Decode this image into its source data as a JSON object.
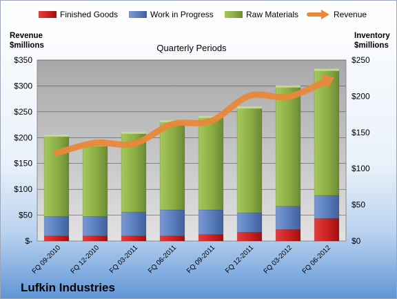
{
  "company": "Lufkin Industries",
  "chart_data": {
    "type": "bar",
    "stacked": true,
    "subtitle": "Quarterly Periods",
    "categories": [
      "FQ 09-2010",
      "FQ 12-2010",
      "FQ 03-2011",
      "FQ 06-2011",
      "FQ 09-2011",
      "FQ 12-2011",
      "FQ 03-2012",
      "FQ 06-2012"
    ],
    "left_axis": {
      "title_line1": "Revenue",
      "title_line2": "$millions",
      "range": [
        0,
        350
      ],
      "ticks": [
        "$-",
        "$50",
        "$100",
        "$150",
        "$200",
        "$250",
        "$300",
        "$350"
      ]
    },
    "right_axis": {
      "title_line1": "Inventory",
      "title_line2": "$millions",
      "range": [
        0,
        250
      ],
      "ticks": [
        "$0",
        "$50",
        "$100",
        "$150",
        "$200",
        "$250"
      ]
    },
    "series": [
      {
        "name": "Finished Goods",
        "axis": "right",
        "kind": "bar",
        "color": "#cc2222",
        "values": [
          7,
          7,
          7,
          7,
          9,
          12,
          16,
          31
        ]
      },
      {
        "name": "Work in Progress",
        "axis": "right",
        "kind": "bar",
        "color": "#5b7fbf",
        "values": [
          27,
          27,
          33,
          36,
          34,
          27,
          32,
          32
        ]
      },
      {
        "name": "Raw Materials",
        "axis": "right",
        "kind": "bar",
        "color": "#8db046",
        "values": [
          111,
          98,
          109,
          122,
          128,
          145,
          165,
          173
        ]
      },
      {
        "name": "Revenue",
        "axis": "left",
        "kind": "line",
        "color": "#e8883a",
        "values": [
          170,
          190,
          188,
          226,
          232,
          281,
          279,
          310
        ]
      }
    ],
    "grid": true,
    "legend_position": "top"
  }
}
